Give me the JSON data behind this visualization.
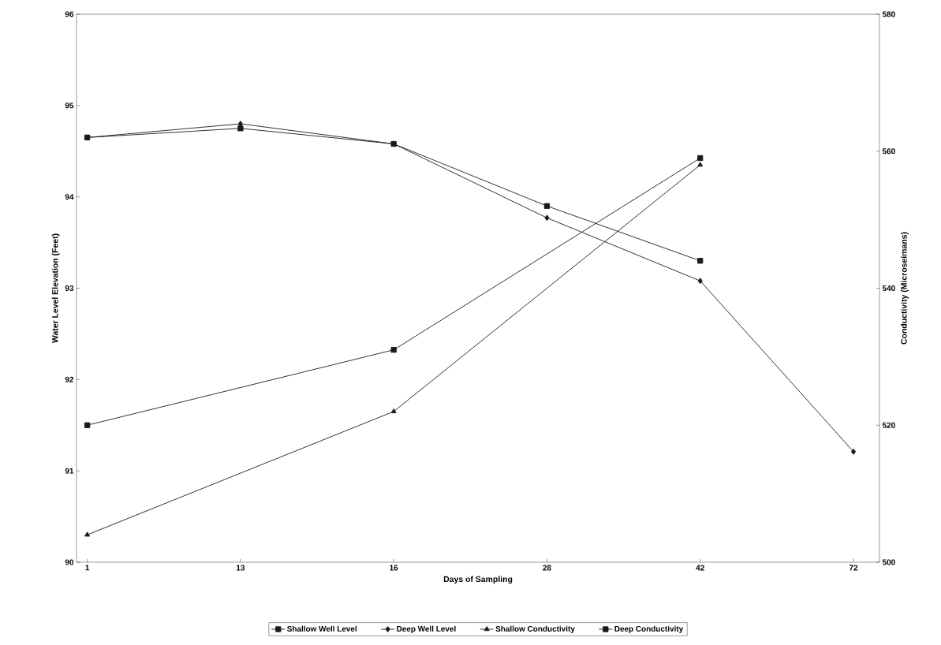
{
  "chart_data": {
    "type": "line",
    "xlabel": "Days of Sampling",
    "ylabel": "Water Level Elevation (Feet)",
    "y2label": "Conductivity (Microseimans)",
    "categories": [
      "1",
      "13",
      "16",
      "28",
      "42",
      "72"
    ],
    "series": [
      {
        "name": "Shallow Well Level",
        "color": "#1a1a1a",
        "marker": "square",
        "values": [
          94.65,
          94.75,
          94.58,
          93.9,
          93.3,
          null
        ]
      },
      {
        "name": "Deep Well Level",
        "color": "#1a1a1a",
        "marker": "diamond",
        "values": [
          94.65,
          94.8,
          94.58,
          93.77,
          93.08,
          91.21
        ]
      },
      {
        "name": "Shallow Conductivity",
        "color": "#1a1a1a",
        "marker": "triangle",
        "axis": "y2",
        "values": [
          504,
          null,
          522,
          null,
          558,
          null
        ]
      },
      {
        "name": "Deep Conductivity",
        "color": "#1a1a1a",
        "marker": "square",
        "axis": "y2",
        "values": [
          520,
          null,
          531,
          null,
          559,
          null
        ]
      }
    ],
    "ylim": [
      90,
      96
    ],
    "yticks": [
      90,
      91,
      92,
      93,
      94,
      95,
      96
    ],
    "y2lim": [
      500,
      580
    ],
    "y2ticks": [
      500,
      520,
      540,
      560,
      580
    ],
    "grid": false,
    "legend": "bottom",
    "line_style": "solid"
  }
}
